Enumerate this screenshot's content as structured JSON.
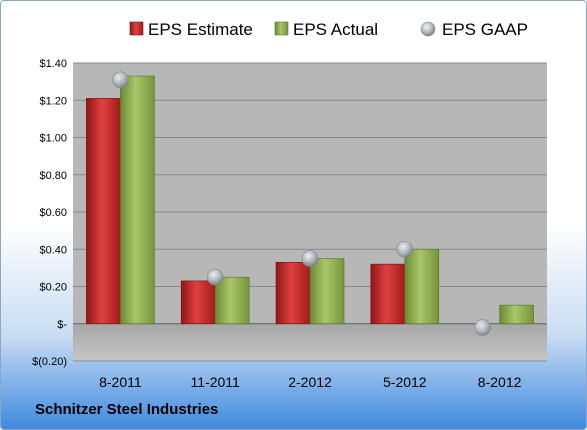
{
  "footer": {
    "company": "Schnitzer Steel Industries"
  },
  "colors": {
    "estimate": "#cc2a2a",
    "actual": "#8fb04e",
    "gaap": "#b3b8bf",
    "plot_background": "#b7b7b7"
  },
  "chart_data": {
    "type": "bar",
    "title": "",
    "xlabel": "",
    "ylabel": "",
    "categories": [
      "8-2011",
      "11-2011",
      "2-2012",
      "5-2012",
      "8-2012"
    ],
    "series": [
      {
        "name": "EPS Estimate",
        "marker": "bar",
        "values": [
          1.21,
          0.23,
          0.33,
          0.32,
          null
        ]
      },
      {
        "name": "EPS Actual",
        "marker": "bar",
        "values": [
          1.33,
          0.25,
          0.35,
          0.4,
          0.1
        ]
      },
      {
        "name": "EPS GAAP",
        "marker": "circle",
        "values": [
          1.31,
          0.25,
          0.35,
          0.4,
          -0.02
        ]
      }
    ],
    "ylim": [
      -0.2,
      1.4
    ],
    "yticks": [
      -0.2,
      0,
      0.2,
      0.4,
      0.6,
      0.8,
      1.0,
      1.2,
      1.4
    ],
    "ytick_labels": [
      "$(0.20)",
      "$-",
      "$0.20",
      "$0.40",
      "$0.60",
      "$0.80",
      "$1.00",
      "$1.20",
      "$1.40"
    ],
    "grid": true,
    "legend_position": "top"
  }
}
